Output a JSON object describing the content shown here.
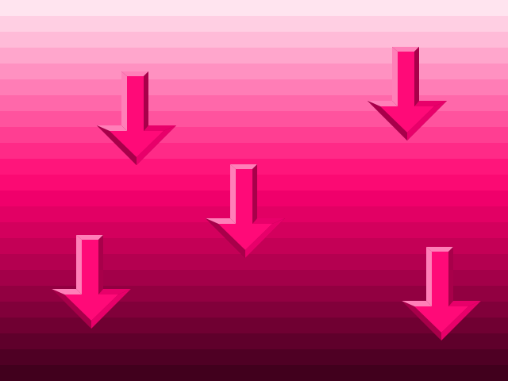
{
  "scene": {
    "background": {
      "style": "horizontal color bands",
      "band_count": 24,
      "colors": [
        "#ffe4ef",
        "#ffcfe3",
        "#ffbbd8",
        "#ffa6cc",
        "#ff91c1",
        "#ff7db6",
        "#ff68aa",
        "#ff539e",
        "#ff3e92",
        "#ff2a87",
        "#ff157b",
        "#fb0a73",
        "#f0006b",
        "#e20064",
        "#d3005d",
        "#c40056",
        "#b40050",
        "#a30049",
        "#920041",
        "#81003a",
        "#700032",
        "#5f002b",
        "#4f0024",
        "#41001d"
      ]
    },
    "arrow_color": "#ff0a78",
    "arrows": [
      {
        "name": "arrow-down-1",
        "icon": "down-arrow-icon",
        "direction": "down"
      },
      {
        "name": "arrow-down-2",
        "icon": "down-arrow-icon",
        "direction": "down"
      },
      {
        "name": "arrow-down-3",
        "icon": "down-arrow-icon",
        "direction": "down"
      },
      {
        "name": "arrow-down-4",
        "icon": "down-arrow-icon",
        "direction": "down"
      },
      {
        "name": "arrow-down-5",
        "icon": "down-arrow-icon",
        "direction": "down"
      }
    ]
  }
}
